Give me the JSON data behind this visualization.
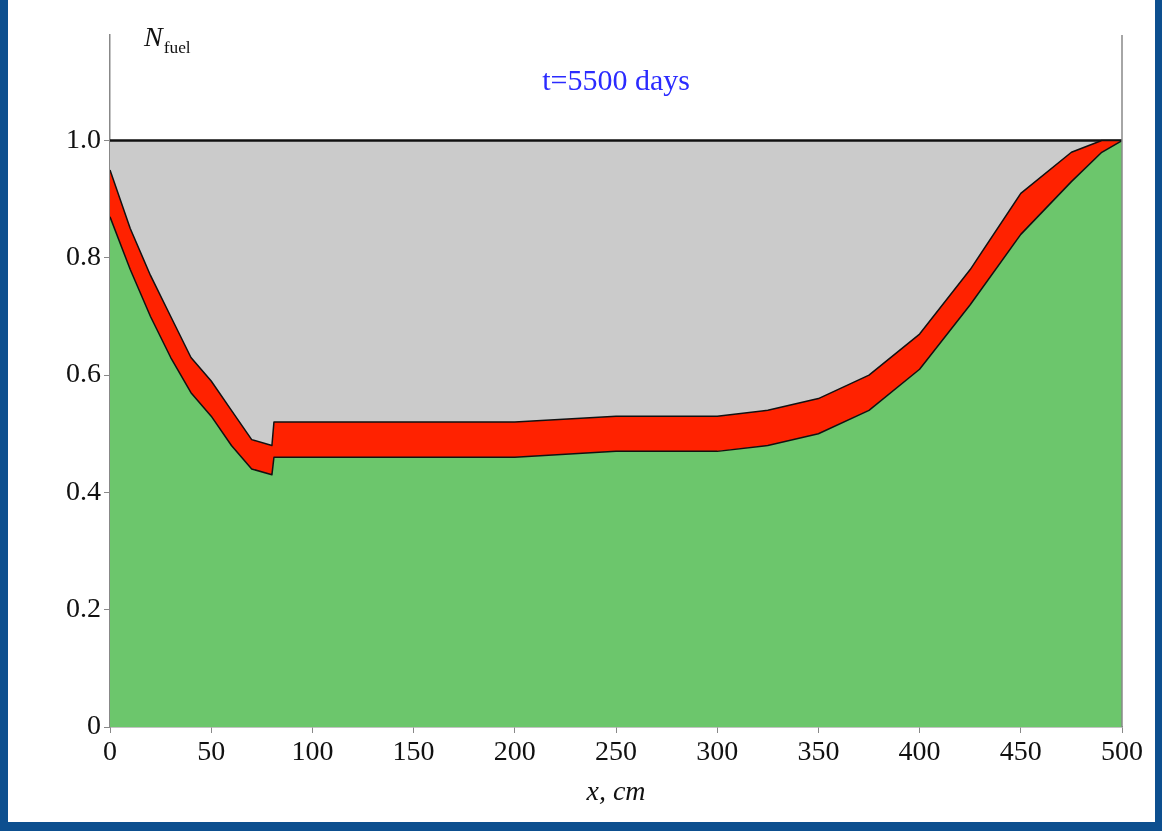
{
  "chart_data": {
    "type": "area",
    "stacked": true,
    "title": "t=5500 days",
    "xlabel": "x, cm",
    "ylabel": "N$_{fuel}$",
    "x": [
      0,
      10,
      20,
      30,
      40,
      50,
      60,
      70,
      80,
      81,
      100,
      150,
      200,
      250,
      300,
      325,
      350,
      375,
      400,
      425,
      450,
      475,
      490,
      500
    ],
    "series": [
      {
        "color": "#6cc66c",
        "values": [
          0.87,
          0.78,
          0.7,
          0.63,
          0.57,
          0.53,
          0.48,
          0.44,
          0.43,
          0.46,
          0.46,
          0.46,
          0.46,
          0.47,
          0.47,
          0.48,
          0.5,
          0.54,
          0.61,
          0.72,
          0.84,
          0.93,
          0.98,
          1.0
        ]
      },
      {
        "color": "#ff2200",
        "values": [
          0.08,
          0.07,
          0.07,
          0.07,
          0.06,
          0.06,
          0.06,
          0.05,
          0.05,
          0.06,
          0.06,
          0.06,
          0.06,
          0.06,
          0.06,
          0.06,
          0.06,
          0.06,
          0.06,
          0.06,
          0.07,
          0.05,
          0.02,
          0
        ]
      },
      {
        "color": "#cbcbcb",
        "values": [
          0.05,
          0.15,
          0.23,
          0.3,
          0.37,
          0.41,
          0.46,
          0.51,
          0.52,
          0.48,
          0.48,
          0.48,
          0.48,
          0.47,
          0.47,
          0.46,
          0.44,
          0.4,
          0.33,
          0.22,
          0.09,
          0.02,
          0,
          0
        ]
      }
    ],
    "xlim": [
      0,
      500
    ],
    "xticks": [
      0,
      50,
      100,
      150,
      200,
      250,
      300,
      350,
      400,
      450,
      500
    ],
    "ylim": [
      0,
      1.18
    ],
    "yticks": [
      0,
      0.2,
      0.4,
      0.6,
      0.8,
      {
        "value": 1,
        "label": "1.0"
      }
    ],
    "grid": false,
    "legend": false
  }
}
